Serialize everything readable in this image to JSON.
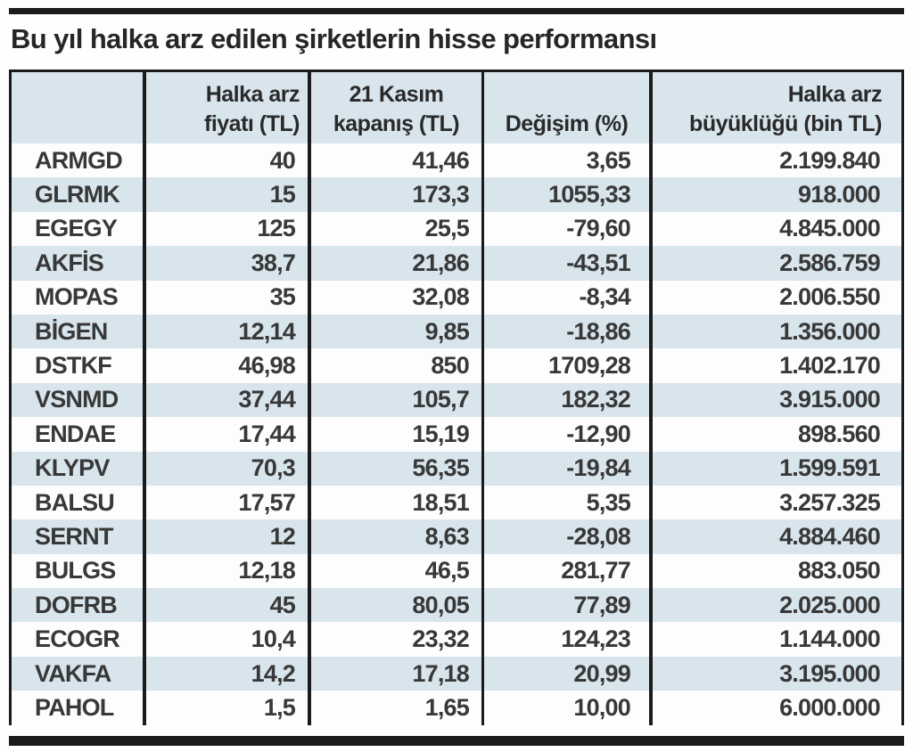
{
  "title": "Bu yıl halka arz edilen şirketlerin hisse performansı",
  "colors": {
    "row_band_blue": "#d8e5ed",
    "row_band_white": "#fdfdfd",
    "rule_black": "#1b1b1b",
    "text": "#2e2e2e"
  },
  "table": {
    "columns": [
      {
        "label": "",
        "line1": "",
        "line2": ""
      },
      {
        "label": "Halka arz fiyatı (TL)",
        "line1": "Halka arz",
        "line2": "fiyatı  (TL)"
      },
      {
        "label": "21 Kasım kapanış (TL)",
        "line1": "21 Kasım",
        "line2": "kapanış (TL)"
      },
      {
        "label": "Değişim (%)",
        "line1": "",
        "line2": "Değişim (%)"
      },
      {
        "label": "Halka arz büyüklüğü (bin TL)",
        "line1": "Halka arz",
        "line2": "büyüklüğü (bin TL)"
      }
    ]
  },
  "chart_data": {
    "type": "table",
    "title": "Bu yıl halka arz edilen şirketlerin hisse performansı",
    "columns": [
      "",
      "Halka arz fiyatı (TL)",
      "21 Kasım kapanış (TL)",
      "Değişim (%)",
      "Halka arz büyüklüğü (bin TL)"
    ],
    "rows": [
      [
        "ARMGD",
        "40",
        "41,46",
        "3,65",
        "2.199.840"
      ],
      [
        "GLRMK",
        "15",
        "173,3",
        "1055,33",
        "918.000"
      ],
      [
        "EGEGY",
        "125",
        "25,5",
        "-79,60",
        "4.845.000"
      ],
      [
        "AKFİS",
        "38,7",
        "21,86",
        "-43,51",
        "2.586.759"
      ],
      [
        "MOPAS",
        "35",
        "32,08",
        "-8,34",
        "2.006.550"
      ],
      [
        "BİGEN",
        "12,14",
        "9,85",
        "-18,86",
        "1.356.000"
      ],
      [
        "DSTKF",
        "46,98",
        "850",
        "1709,28",
        "1.402.170"
      ],
      [
        "VSNMD",
        "37,44",
        "105,7",
        "182,32",
        "3.915.000"
      ],
      [
        "ENDAE",
        "17,44",
        "15,19",
        "-12,90",
        "898.560"
      ],
      [
        "KLYPV",
        "70,3",
        "56,35",
        "-19,84",
        "1.599.591"
      ],
      [
        "BALSU",
        "17,57",
        "18,51",
        "5,35",
        "3.257.325"
      ],
      [
        "SERNT",
        "12",
        "8,63",
        "-28,08",
        "4.884.460"
      ],
      [
        "BULGS",
        "12,18",
        "46,5",
        "281,77",
        "883.050"
      ],
      [
        "DOFRB",
        "45",
        "80,05",
        "77,89",
        "2.025.000"
      ],
      [
        "ECOGR",
        "10,4",
        "23,32",
        "124,23",
        "1.144.000"
      ],
      [
        "VAKFA",
        "14,2",
        "17,18",
        "20,99",
        "3.195.000"
      ],
      [
        "PAHOL",
        "1,5",
        "1,65",
        "10,00",
        "6.000.000"
      ]
    ]
  }
}
